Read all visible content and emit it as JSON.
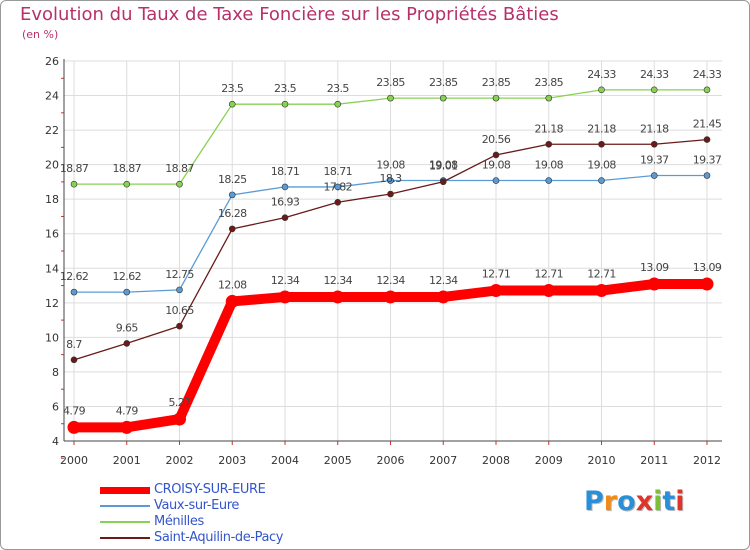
{
  "title": "Evolution du Taux de Taxe Foncière sur les Propriétés Bâties",
  "subtitle": "(en %)",
  "logo": {
    "letters": [
      "P",
      "r",
      "o",
      "x",
      "i",
      "t",
      "i"
    ],
    "colors": [
      "#2a8fd6",
      "#f08a1c",
      "#2a8fd6",
      "#e0342a",
      "#7cc036",
      "#2a8fd6",
      "#e0342a"
    ]
  },
  "chart_data": {
    "type": "line",
    "title": "Evolution du Taux de Taxe Foncière sur les Propriétés Bâties",
    "ylabel": "(en %)",
    "xlabel": "",
    "categories": [
      "2000",
      "2001",
      "2002",
      "2003",
      "2004",
      "2005",
      "2006",
      "2007",
      "2008",
      "2009",
      "2010",
      "2011",
      "2012"
    ],
    "ylim": [
      4,
      26
    ],
    "yticks": [
      4,
      6,
      8,
      10,
      12,
      14,
      16,
      18,
      20,
      22,
      24,
      26
    ],
    "grid": true,
    "legend_position": "bottom-left",
    "series": [
      {
        "name": "CROISY-SUR-EURE",
        "color": "#ff0000",
        "thick": true,
        "values": [
          4.79,
          4.79,
          5.27,
          12.08,
          12.34,
          12.34,
          12.34,
          12.34,
          12.71,
          12.71,
          12.71,
          13.09,
          13.09
        ],
        "labels": [
          "4.79",
          "4.79",
          "5.27",
          "12.08",
          "12.34",
          "12.34",
          "12.34",
          "12.34",
          "12.71",
          "12.71",
          "12.71",
          "13.09",
          "13.09"
        ]
      },
      {
        "name": "Vaux-sur-Eure",
        "color": "#5b9bd5",
        "thick": false,
        "values": [
          12.62,
          12.62,
          12.75,
          18.25,
          18.71,
          18.71,
          19.08,
          19.08,
          19.08,
          19.08,
          19.08,
          19.37,
          19.37
        ],
        "labels": [
          "12.62",
          "12.62",
          "12.75",
          "18.25",
          "18.71",
          "18.71",
          "19.08",
          "19.08",
          "19.08",
          "19.08",
          "19.08",
          "19.37",
          "19.37"
        ]
      },
      {
        "name": "Ménilles",
        "color": "#88d153",
        "thick": false,
        "values": [
          18.87,
          18.87,
          18.87,
          23.5,
          23.5,
          23.5,
          23.85,
          23.85,
          23.85,
          23.85,
          24.33,
          24.33,
          24.33
        ],
        "labels": [
          "18.87",
          "18.87",
          "18.87",
          "23.5",
          "23.5",
          "23.5",
          "23.85",
          "23.85",
          "23.85",
          "23.85",
          "24.33",
          "24.33",
          "24.33"
        ]
      },
      {
        "name": "Saint-Aquilin-de-Pacy",
        "color": "#6b1a1a",
        "thick": false,
        "values": [
          8.7,
          9.65,
          10.65,
          16.28,
          16.93,
          17.82,
          18.3,
          19.01,
          20.56,
          21.18,
          21.18,
          21.18,
          21.45
        ],
        "labels": [
          "8.7",
          "9.65",
          "10.65",
          "16.28",
          "16.93",
          "17.82",
          "18.3",
          "19.01",
          "20.56",
          "21.18",
          "21.18",
          "21.18",
          "21.45"
        ]
      }
    ]
  }
}
